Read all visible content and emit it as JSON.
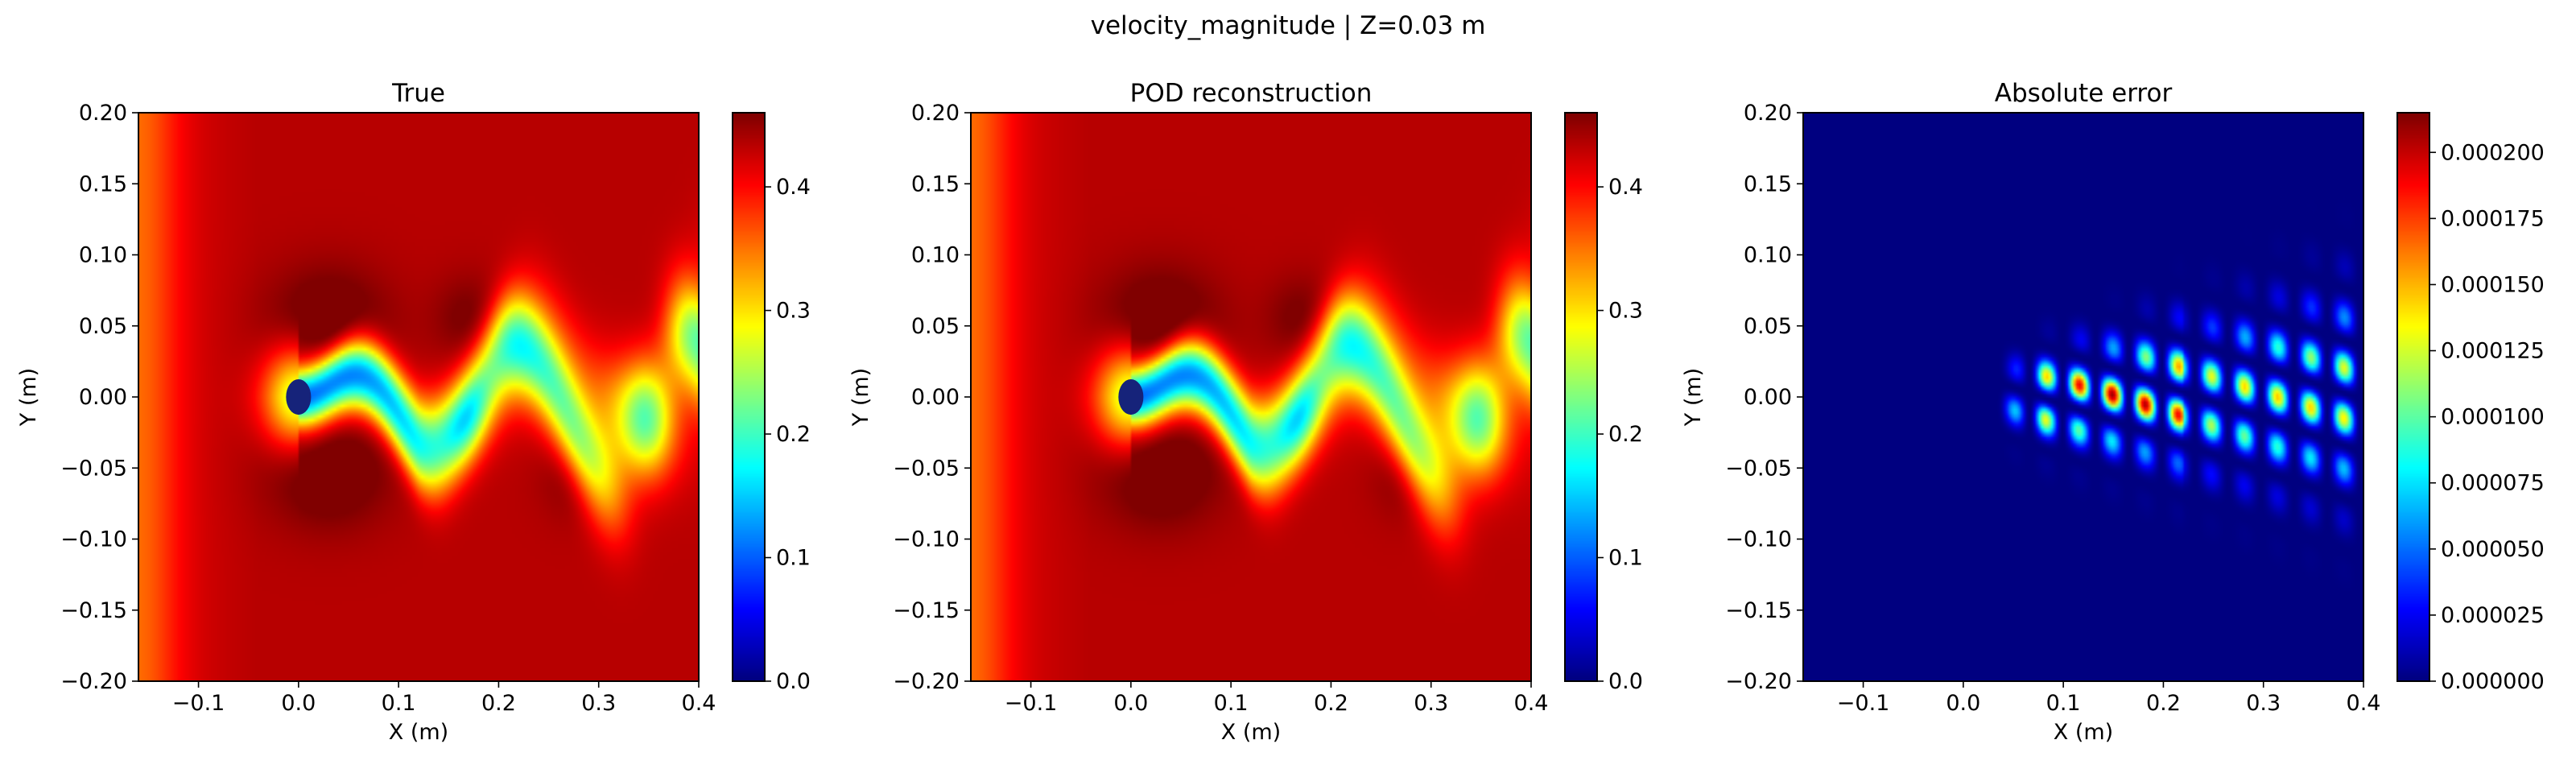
{
  "figure": {
    "suptitle": "velocity_magnitude | Z=0.03 m"
  },
  "colormap": "jet",
  "chart_data": [
    {
      "type": "heatmap",
      "title": "True",
      "xlabel": "X (m)",
      "ylabel": "Y (m)",
      "xlim": [
        -0.16,
        0.4
      ],
      "ylim": [
        -0.2,
        0.2
      ],
      "xticks": [
        "−0.1",
        "0.0",
        "0.1",
        "0.2",
        "0.3",
        "0.4"
      ],
      "xtick_values": [
        -0.1,
        0.0,
        0.1,
        0.2,
        0.3,
        0.4
      ],
      "yticks": [
        "−0.20",
        "−0.15",
        "−0.10",
        "−0.05",
        "0.00",
        "0.05",
        "0.10",
        "0.15",
        "0.20"
      ],
      "ytick_values": [
        -0.2,
        -0.15,
        -0.1,
        -0.05,
        0.0,
        0.05,
        0.1,
        0.15,
        0.2
      ],
      "field": "velocity_wake",
      "colorbar": {
        "range": [
          0.0,
          0.46
        ],
        "ticks": [
          "0.0",
          "0.1",
          "0.2",
          "0.3",
          "0.4"
        ],
        "tick_values": [
          0.0,
          0.1,
          0.2,
          0.3,
          0.4
        ]
      },
      "cylinder": {
        "center": [
          0.0,
          0.0
        ],
        "radius": 0.0125
      }
    },
    {
      "type": "heatmap",
      "title": "POD reconstruction",
      "xlabel": "X (m)",
      "ylabel": "Y (m)",
      "xlim": [
        -0.16,
        0.4
      ],
      "ylim": [
        -0.2,
        0.2
      ],
      "xticks": [
        "−0.1",
        "0.0",
        "0.1",
        "0.2",
        "0.3",
        "0.4"
      ],
      "xtick_values": [
        -0.1,
        0.0,
        0.1,
        0.2,
        0.3,
        0.4
      ],
      "yticks": [
        "−0.20",
        "−0.15",
        "−0.10",
        "−0.05",
        "0.00",
        "0.05",
        "0.10",
        "0.15",
        "0.20"
      ],
      "ytick_values": [
        -0.2,
        -0.15,
        -0.1,
        -0.05,
        0.0,
        0.05,
        0.1,
        0.15,
        0.2
      ],
      "field": "velocity_wake",
      "colorbar": {
        "range": [
          0.0,
          0.46
        ],
        "ticks": [
          "0.0",
          "0.1",
          "0.2",
          "0.3",
          "0.4"
        ],
        "tick_values": [
          0.0,
          0.1,
          0.2,
          0.3,
          0.4
        ]
      },
      "cylinder": {
        "center": [
          0.0,
          0.0
        ],
        "radius": 0.0125
      }
    },
    {
      "type": "heatmap",
      "title": "Absolute error",
      "xlabel": "X (m)",
      "ylabel": "Y (m)",
      "xlim": [
        -0.16,
        0.4
      ],
      "ylim": [
        -0.2,
        0.2
      ],
      "xticks": [
        "−0.1",
        "0.0",
        "0.1",
        "0.2",
        "0.3",
        "0.4"
      ],
      "xtick_values": [
        -0.1,
        0.0,
        0.1,
        0.2,
        0.3,
        0.4
      ],
      "yticks": [
        "−0.20",
        "−0.15",
        "−0.10",
        "−0.05",
        "0.00",
        "0.05",
        "0.10",
        "0.15",
        "0.20"
      ],
      "ytick_values": [
        -0.2,
        -0.15,
        -0.1,
        -0.05,
        0.0,
        0.05,
        0.1,
        0.15,
        0.2
      ],
      "field": "error_wake",
      "colorbar": {
        "range": [
          0.0,
          0.000215
        ],
        "ticks": [
          "0.000000",
          "0.000025",
          "0.000050",
          "0.000075",
          "0.000100",
          "0.000125",
          "0.000150",
          "0.000175",
          "0.000200"
        ],
        "tick_values": [
          0.0,
          2.5e-05,
          5e-05,
          7.5e-05,
          0.0001,
          0.000125,
          0.00015,
          0.000175,
          0.0002
        ]
      },
      "cylinder": null
    }
  ]
}
